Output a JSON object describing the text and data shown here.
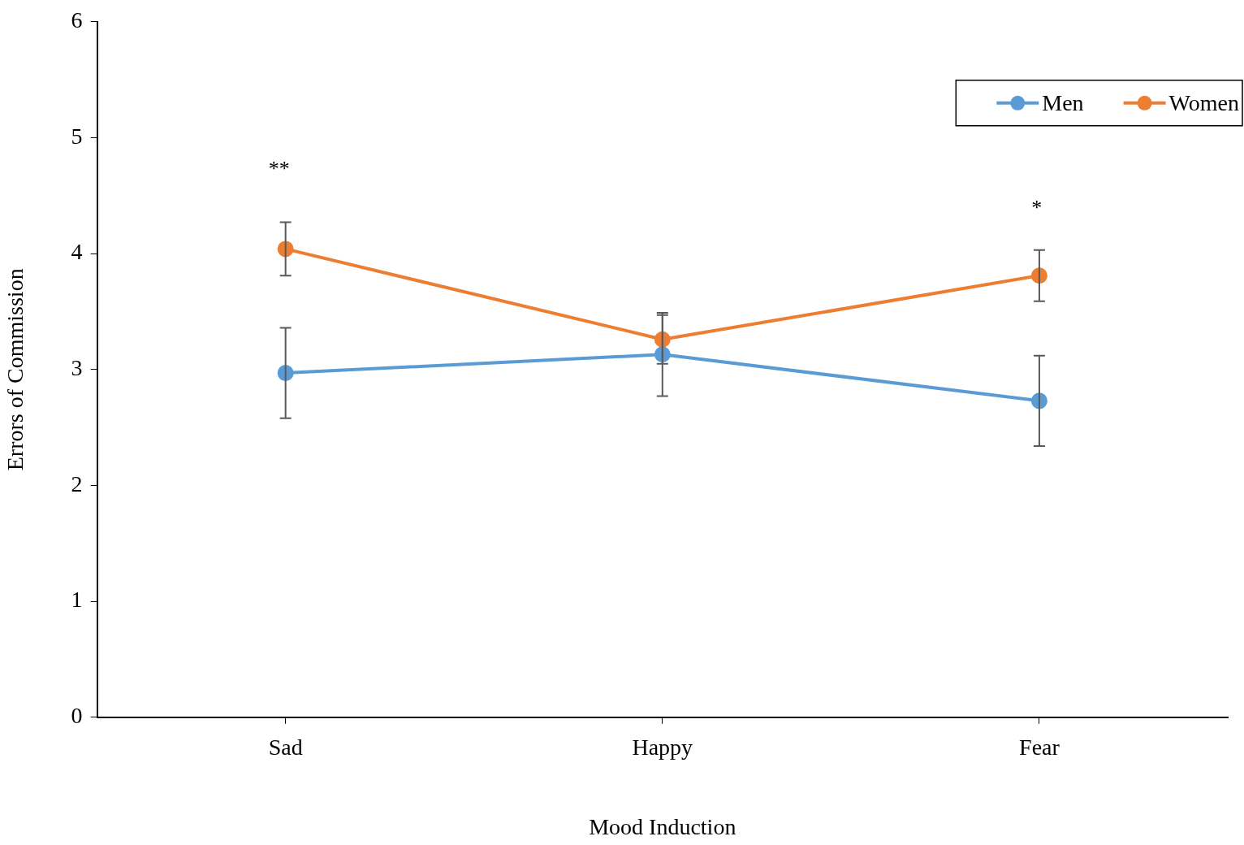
{
  "chart_data": {
    "type": "line",
    "xlabel": "Mood Induction",
    "ylabel": "Errors of Commission",
    "categories": [
      "Sad",
      "Happy",
      "Fear"
    ],
    "series": [
      {
        "name": "Men",
        "color": "#5b9bd5",
        "values": [
          2.97,
          3.13,
          2.73
        ],
        "errors": [
          0.39,
          0.36,
          0.39
        ]
      },
      {
        "name": "Women",
        "color": "#ed7d31",
        "values": [
          4.04,
          3.26,
          3.81
        ],
        "errors": [
          0.23,
          0.21,
          0.22
        ]
      }
    ],
    "ylim": [
      0,
      6
    ],
    "yticks": [
      0,
      1,
      2,
      3,
      4,
      5,
      6
    ],
    "grid": false,
    "legend": "top right",
    "marker": "circle",
    "line_style": "solid",
    "annotations": [
      "**",
      "*"
    ]
  }
}
